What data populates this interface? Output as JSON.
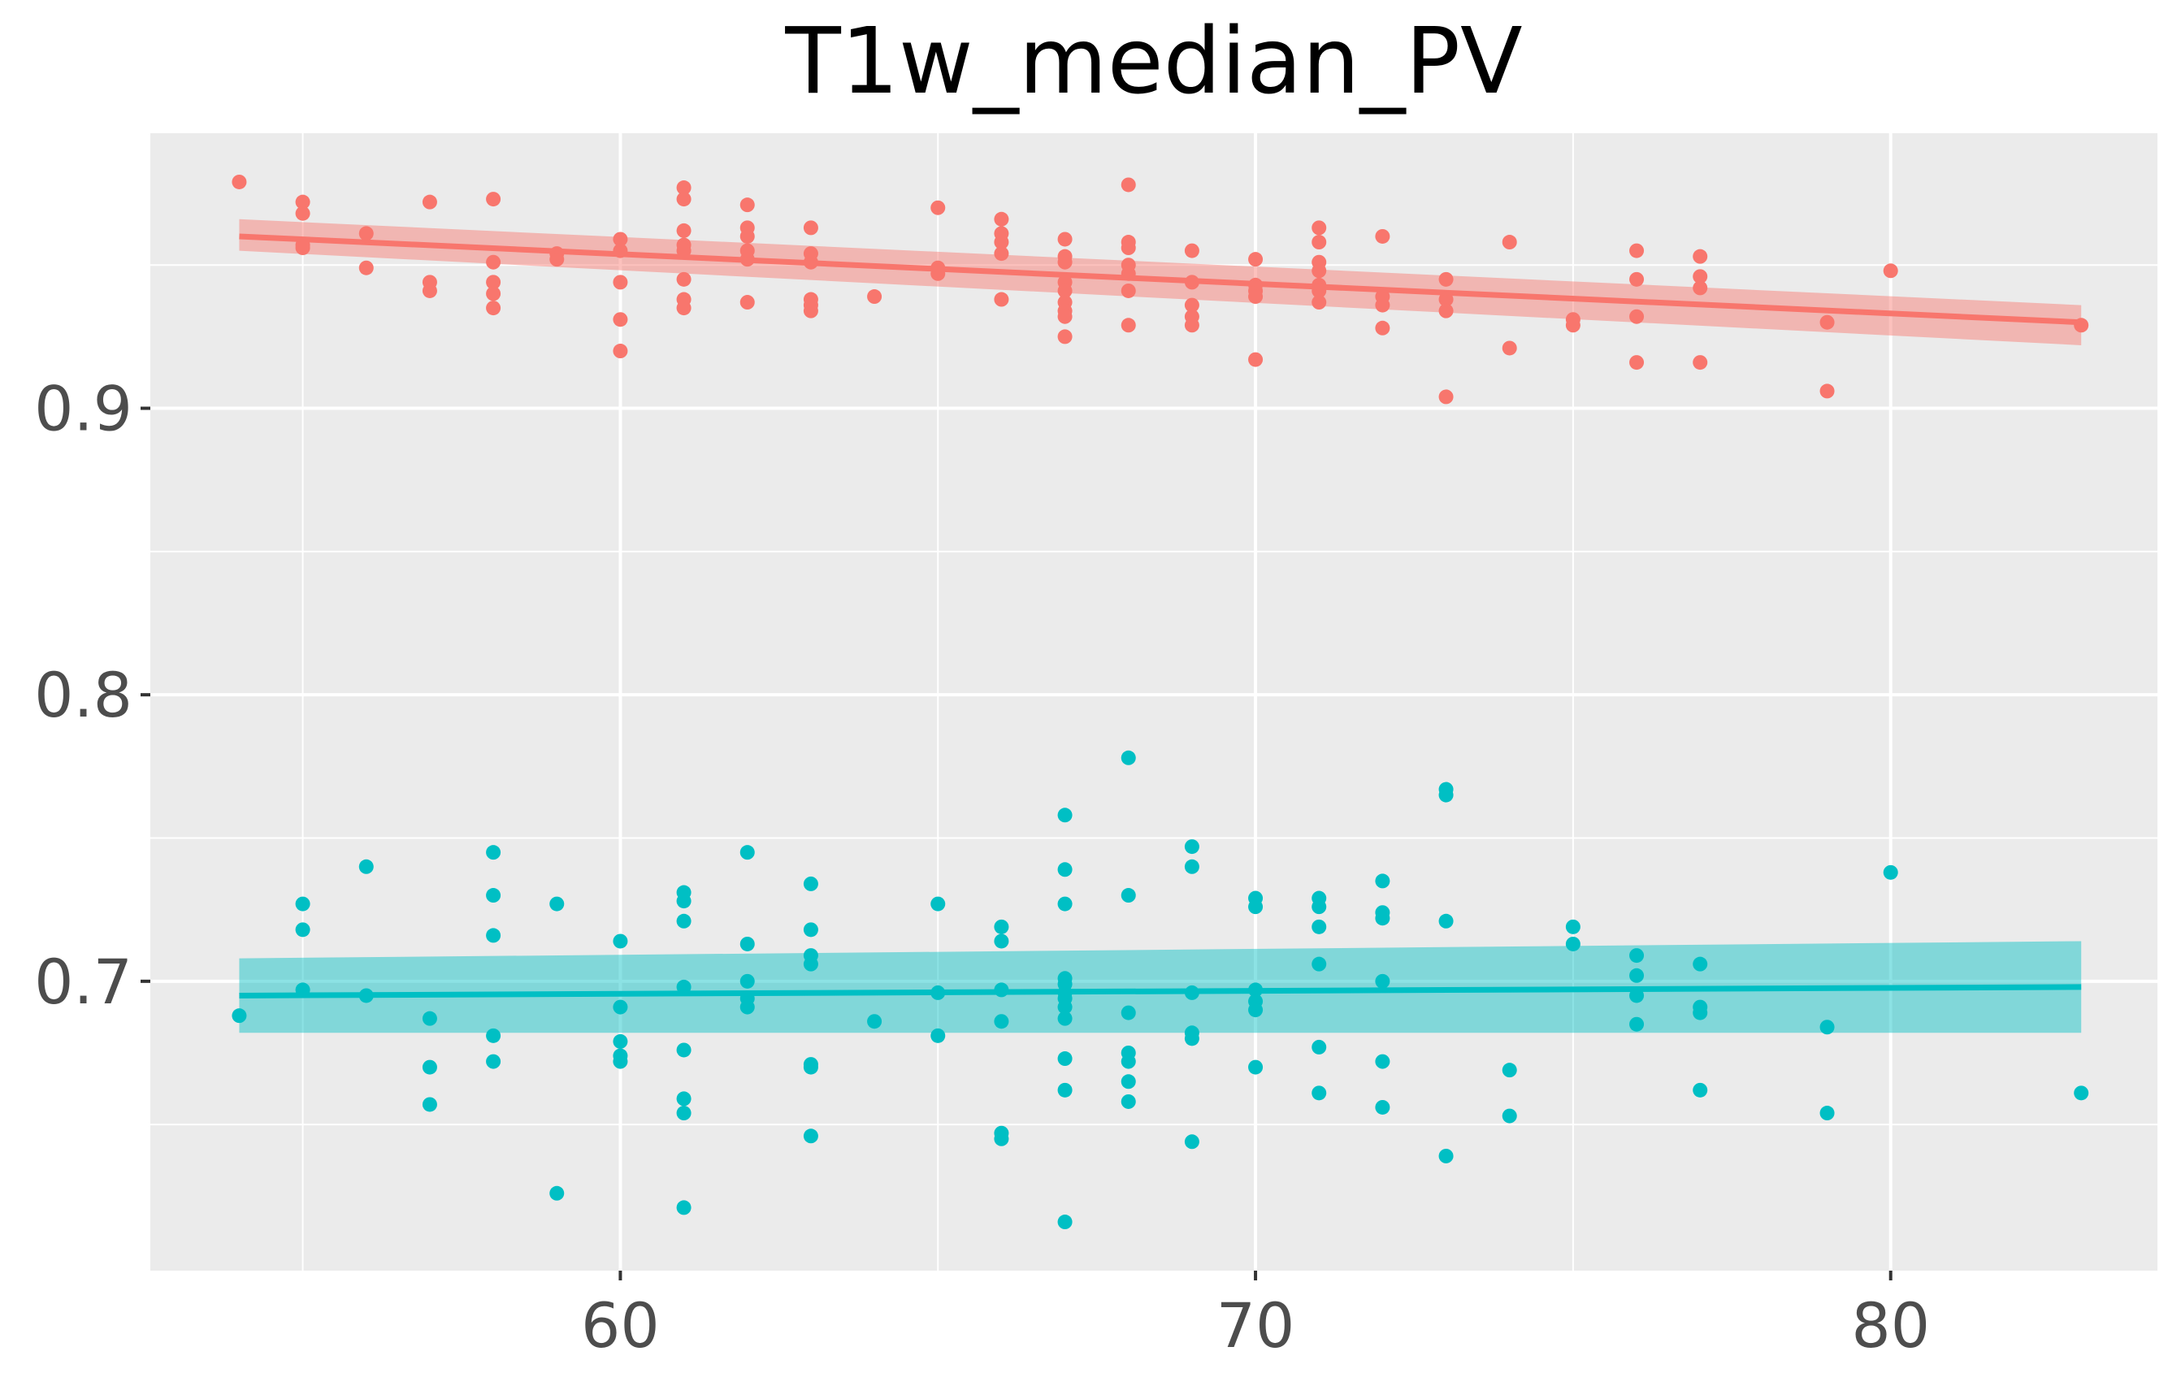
{
  "chart_data": {
    "type": "scatter",
    "title": "T1w_median_PV",
    "xlabel": "",
    "ylabel": "",
    "xlim": [
      52.6,
      84.2
    ],
    "ylim": [
      0.599,
      0.996
    ],
    "x_ticks": [
      60,
      70,
      80
    ],
    "x_tick_labels": [
      "60",
      "70",
      "80"
    ],
    "y_ticks": [
      0.7,
      0.8,
      0.9
    ],
    "y_tick_labels": [
      "0.7",
      "0.8",
      "0.9"
    ],
    "grid": true,
    "panel_background": "#ebebeb",
    "gridline_color": "#ffffff",
    "legend": "none",
    "series": [
      {
        "color": "#f8766d",
        "points": [
          [
            54,
            0.979
          ],
          [
            55,
            0.972
          ],
          [
            55,
            0.968
          ],
          [
            55,
            0.957
          ],
          [
            55,
            0.956
          ],
          [
            56,
            0.961
          ],
          [
            56,
            0.949
          ],
          [
            57,
            0.972
          ],
          [
            57,
            0.944
          ],
          [
            57,
            0.941
          ],
          [
            58,
            0.973
          ],
          [
            58,
            0.951
          ],
          [
            58,
            0.944
          ],
          [
            58,
            0.94
          ],
          [
            58,
            0.935
          ],
          [
            59,
            0.954
          ],
          [
            59,
            0.952
          ],
          [
            60,
            0.959
          ],
          [
            60,
            0.955
          ],
          [
            60,
            0.944
          ],
          [
            60,
            0.931
          ],
          [
            60,
            0.92
          ],
          [
            61,
            0.977
          ],
          [
            61,
            0.973
          ],
          [
            61,
            0.962
          ],
          [
            61,
            0.957
          ],
          [
            61,
            0.955
          ],
          [
            61,
            0.945
          ],
          [
            61,
            0.938
          ],
          [
            61,
            0.935
          ],
          [
            62,
            0.971
          ],
          [
            62,
            0.963
          ],
          [
            62,
            0.96
          ],
          [
            62,
            0.955
          ],
          [
            62,
            0.952
          ],
          [
            62,
            0.937
          ],
          [
            63,
            0.963
          ],
          [
            63,
            0.954
          ],
          [
            63,
            0.951
          ],
          [
            63,
            0.938
          ],
          [
            63,
            0.936
          ],
          [
            63,
            0.934
          ],
          [
            64,
            0.939
          ],
          [
            65,
            0.97
          ],
          [
            65,
            0.949
          ],
          [
            65,
            0.947
          ],
          [
            66,
            0.966
          ],
          [
            66,
            0.961
          ],
          [
            66,
            0.958
          ],
          [
            66,
            0.954
          ],
          [
            66,
            0.938
          ],
          [
            67,
            0.959
          ],
          [
            67,
            0.953
          ],
          [
            67,
            0.951
          ],
          [
            67,
            0.944
          ],
          [
            67,
            0.941
          ],
          [
            67,
            0.937
          ],
          [
            67,
            0.934
          ],
          [
            67,
            0.932
          ],
          [
            67,
            0.925
          ],
          [
            68,
            0.978
          ],
          [
            68,
            0.958
          ],
          [
            68,
            0.956
          ],
          [
            68,
            0.95
          ],
          [
            68,
            0.947
          ],
          [
            68,
            0.941
          ],
          [
            68,
            0.929
          ],
          [
            69,
            0.955
          ],
          [
            69,
            0.944
          ],
          [
            69,
            0.936
          ],
          [
            69,
            0.932
          ],
          [
            69,
            0.929
          ],
          [
            70,
            0.952
          ],
          [
            70,
            0.943
          ],
          [
            70,
            0.941
          ],
          [
            70,
            0.939
          ],
          [
            70,
            0.917
          ],
          [
            71,
            0.963
          ],
          [
            71,
            0.958
          ],
          [
            71,
            0.951
          ],
          [
            71,
            0.948
          ],
          [
            71,
            0.943
          ],
          [
            71,
            0.941
          ],
          [
            71,
            0.937
          ],
          [
            72,
            0.96
          ],
          [
            72,
            0.939
          ],
          [
            72,
            0.936
          ],
          [
            72,
            0.928
          ],
          [
            73,
            0.945
          ],
          [
            73,
            0.938
          ],
          [
            73,
            0.934
          ],
          [
            73,
            0.904
          ],
          [
            74,
            0.958
          ],
          [
            74,
            0.921
          ],
          [
            75,
            0.931
          ],
          [
            75,
            0.929
          ],
          [
            76,
            0.955
          ],
          [
            76,
            0.945
          ],
          [
            76,
            0.932
          ],
          [
            76,
            0.916
          ],
          [
            77,
            0.953
          ],
          [
            77,
            0.946
          ],
          [
            77,
            0.942
          ],
          [
            77,
            0.916
          ],
          [
            79,
            0.93
          ],
          [
            79,
            0.906
          ],
          [
            80,
            0.948
          ],
          [
            83,
            0.929
          ]
        ],
        "fit": {
          "x": [
            54,
            83
          ],
          "y": [
            0.96,
            0.93
          ],
          "ci_lower": [
            0.955,
            0.922
          ],
          "ci_upper": [
            0.966,
            0.936
          ]
        }
      },
      {
        "color": "#00bfc4",
        "points": [
          [
            54,
            0.688
          ],
          [
            55,
            0.727
          ],
          [
            55,
            0.718
          ],
          [
            55,
            0.697
          ],
          [
            56,
            0.74
          ],
          [
            56,
            0.695
          ],
          [
            57,
            0.687
          ],
          [
            57,
            0.67
          ],
          [
            57,
            0.657
          ],
          [
            58,
            0.745
          ],
          [
            58,
            0.73
          ],
          [
            58,
            0.716
          ],
          [
            58,
            0.681
          ],
          [
            58,
            0.672
          ],
          [
            59,
            0.727
          ],
          [
            59,
            0.626
          ],
          [
            60,
            0.714
          ],
          [
            60,
            0.691
          ],
          [
            60,
            0.679
          ],
          [
            60,
            0.674
          ],
          [
            60,
            0.672
          ],
          [
            61,
            0.731
          ],
          [
            61,
            0.728
          ],
          [
            61,
            0.721
          ],
          [
            61,
            0.698
          ],
          [
            61,
            0.676
          ],
          [
            61,
            0.659
          ],
          [
            61,
            0.654
          ],
          [
            61,
            0.621
          ],
          [
            62,
            0.745
          ],
          [
            62,
            0.713
          ],
          [
            62,
            0.7
          ],
          [
            62,
            0.694
          ],
          [
            62,
            0.691
          ],
          [
            63,
            0.734
          ],
          [
            63,
            0.718
          ],
          [
            63,
            0.709
          ],
          [
            63,
            0.706
          ],
          [
            63,
            0.671
          ],
          [
            63,
            0.67
          ],
          [
            63,
            0.646
          ],
          [
            64,
            0.686
          ],
          [
            65,
            0.727
          ],
          [
            65,
            0.696
          ],
          [
            65,
            0.681
          ],
          [
            66,
            0.719
          ],
          [
            66,
            0.714
          ],
          [
            66,
            0.697
          ],
          [
            66,
            0.686
          ],
          [
            66,
            0.647
          ],
          [
            66,
            0.645
          ],
          [
            67,
            0.758
          ],
          [
            67,
            0.739
          ],
          [
            67,
            0.727
          ],
          [
            67,
            0.701
          ],
          [
            67,
            0.699
          ],
          [
            67,
            0.696
          ],
          [
            67,
            0.694
          ],
          [
            67,
            0.691
          ],
          [
            67,
            0.687
          ],
          [
            67,
            0.673
          ],
          [
            67,
            0.662
          ],
          [
            67,
            0.616
          ],
          [
            68,
            0.778
          ],
          [
            68,
            0.73
          ],
          [
            68,
            0.689
          ],
          [
            68,
            0.675
          ],
          [
            68,
            0.672
          ],
          [
            68,
            0.665
          ],
          [
            68,
            0.658
          ],
          [
            69,
            0.747
          ],
          [
            69,
            0.74
          ],
          [
            69,
            0.696
          ],
          [
            69,
            0.682
          ],
          [
            69,
            0.68
          ],
          [
            69,
            0.644
          ],
          [
            70,
            0.729
          ],
          [
            70,
            0.726
          ],
          [
            70,
            0.697
          ],
          [
            70,
            0.693
          ],
          [
            70,
            0.69
          ],
          [
            70,
            0.67
          ],
          [
            71,
            0.729
          ],
          [
            71,
            0.726
          ],
          [
            71,
            0.719
          ],
          [
            71,
            0.706
          ],
          [
            71,
            0.677
          ],
          [
            71,
            0.661
          ],
          [
            72,
            0.735
          ],
          [
            72,
            0.724
          ],
          [
            72,
            0.722
          ],
          [
            72,
            0.7
          ],
          [
            72,
            0.672
          ],
          [
            72,
            0.656
          ],
          [
            73,
            0.767
          ],
          [
            73,
            0.765
          ],
          [
            73,
            0.721
          ],
          [
            73,
            0.639
          ],
          [
            74,
            0.669
          ],
          [
            74,
            0.653
          ],
          [
            75,
            0.719
          ],
          [
            75,
            0.713
          ],
          [
            76,
            0.709
          ],
          [
            76,
            0.702
          ],
          [
            76,
            0.695
          ],
          [
            76,
            0.685
          ],
          [
            77,
            0.706
          ],
          [
            77,
            0.691
          ],
          [
            77,
            0.689
          ],
          [
            77,
            0.662
          ],
          [
            79,
            0.684
          ],
          [
            79,
            0.654
          ],
          [
            80,
            0.738
          ],
          [
            83,
            0.661
          ]
        ],
        "fit": {
          "x": [
            54,
            83
          ],
          "y": [
            0.695,
            0.698
          ],
          "ci_lower": [
            0.682,
            0.682
          ],
          "ci_upper": [
            0.708,
            0.714
          ]
        }
      }
    ]
  }
}
